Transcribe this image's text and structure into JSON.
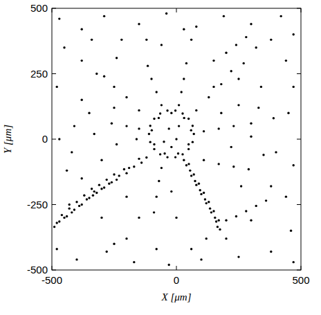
{
  "chart_data": {
    "type": "scatter",
    "xlabel": "X [μm]",
    "ylabel": "Y [μm]",
    "xlim": [
      -500,
      500
    ],
    "ylim": [
      -500,
      500
    ],
    "xticks": [
      -500,
      0,
      500
    ],
    "yticks": [
      -500,
      -250,
      0,
      250,
      500
    ],
    "color": "#000000",
    "marker": "dot",
    "grid": false,
    "x": [
      70,
      65,
      49,
      25,
      -4,
      -36,
      -65,
      -89,
      -105,
      -110,
      -105,
      -89,
      -65,
      -36,
      -4,
      25,
      49,
      65,
      59,
      31,
      -20,
      -71,
      -99,
      -89,
      -47,
      7,
      49,
      -30,
      0,
      -50,
      10,
      -20,
      -120,
      -140,
      -150,
      -170,
      -190,
      -200,
      -210,
      -230,
      -240,
      -250,
      -260,
      -270,
      -280,
      -290,
      -300,
      -310,
      -320,
      -330,
      -335,
      -340,
      -350,
      -360,
      -370,
      -380,
      -390,
      -400,
      -410,
      -420,
      -430,
      -440,
      -450,
      -460,
      -470,
      -480,
      -490,
      30,
      40,
      50,
      55,
      60,
      70,
      75,
      80,
      90,
      95,
      100,
      110,
      115,
      120,
      130,
      135,
      140,
      150,
      155,
      160,
      170,
      165,
      175,
      200,
      240,
      280,
      320,
      360,
      -60,
      -80,
      -100,
      -115,
      10,
      20,
      30,
      40,
      80,
      130,
      180,
      220,
      110,
      170,
      230,
      300,
      110,
      170,
      230,
      290,
      -150,
      -200,
      -260,
      -150,
      -200,
      -250,
      -290,
      -60,
      -70,
      -80,
      -90,
      150,
      200,
      240,
      280,
      -420,
      -410,
      -380,
      -320,
      -240,
      -380,
      -300,
      -200,
      -80,
      60,
      200,
      300,
      380,
      400,
      390,
      340,
      270,
      -470,
      -380,
      -290,
      -150,
      -40,
      80,
      190,
      300,
      420,
      470,
      -450,
      -340,
      -220,
      -60,
      60,
      320,
      440,
      -480,
      -350,
      -470,
      -440,
      -480,
      -400,
      -280,
      -170,
      -30,
      100,
      250,
      380,
      470,
      460,
      440,
      470,
      450,
      470,
      -240,
      -300,
      -200,
      -150,
      -250,
      0,
      -20,
      260,
      220,
      300,
      350,
      250,
      180,
      330,
      -330,
      -250,
      -380,
      120,
      380,
      -160,
      150,
      -120,
      30,
      250,
      -430
    ],
    "values": [
      20,
      51,
      78,
      98,
      109,
      109,
      98,
      78,
      51,
      20,
      -11,
      -38,
      -58,
      -69,
      -69,
      -58,
      -38,
      -11,
      34,
      81,
      100,
      81,
      34,
      -20,
      -55,
      -55,
      -20,
      40,
      0,
      -10,
      50,
      -30,
      -70,
      -90,
      -75,
      -105,
      -110,
      -130,
      -115,
      -140,
      -155,
      -135,
      -165,
      -170,
      -155,
      -185,
      -190,
      -175,
      -205,
      -200,
      -215,
      -190,
      -225,
      -230,
      -215,
      -250,
      -255,
      -240,
      -270,
      -280,
      -265,
      -295,
      -300,
      -290,
      -315,
      -320,
      -335,
      -80,
      -100,
      -95,
      -120,
      -140,
      -135,
      -160,
      -175,
      -170,
      -195,
      -210,
      -205,
      -230,
      -245,
      -240,
      -265,
      -280,
      -275,
      -300,
      -315,
      -310,
      -335,
      -345,
      -310,
      -295,
      -275,
      -255,
      -235,
      130,
      180,
      230,
      280,
      130,
      180,
      230,
      290,
      110,
      160,
      210,
      260,
      30,
      40,
      50,
      60,
      -80,
      -95,
      -105,
      -115,
      40,
      50,
      60,
      110,
      160,
      200,
      240,
      -110,
      -160,
      -220,
      -280,
      300,
      330,
      360,
      390,
      -50,
      50,
      150,
      250,
      310,
      -150,
      -300,
      -380,
      -420,
      -420,
      -380,
      -310,
      -180,
      -50,
      80,
      200,
      290,
      460,
      420,
      470,
      440,
      480,
      430,
      470,
      440,
      470,
      400,
      350,
      380,
      380,
      360,
      380,
      350,
      300,
      200,
      100,
      0,
      -120,
      -420,
      -460,
      -430,
      -470,
      -480,
      -460,
      -450,
      -430,
      -470,
      -350,
      -220,
      -100,
      100,
      200,
      -20,
      -80,
      -220,
      -300,
      -400,
      -300,
      -200,
      -180,
      -30,
      10,
      -60,
      130,
      100,
      120,
      20,
      120,
      300,
      -380,
      380,
      0,
      200,
      380,
      420,
      230,
      -250
    ]
  }
}
